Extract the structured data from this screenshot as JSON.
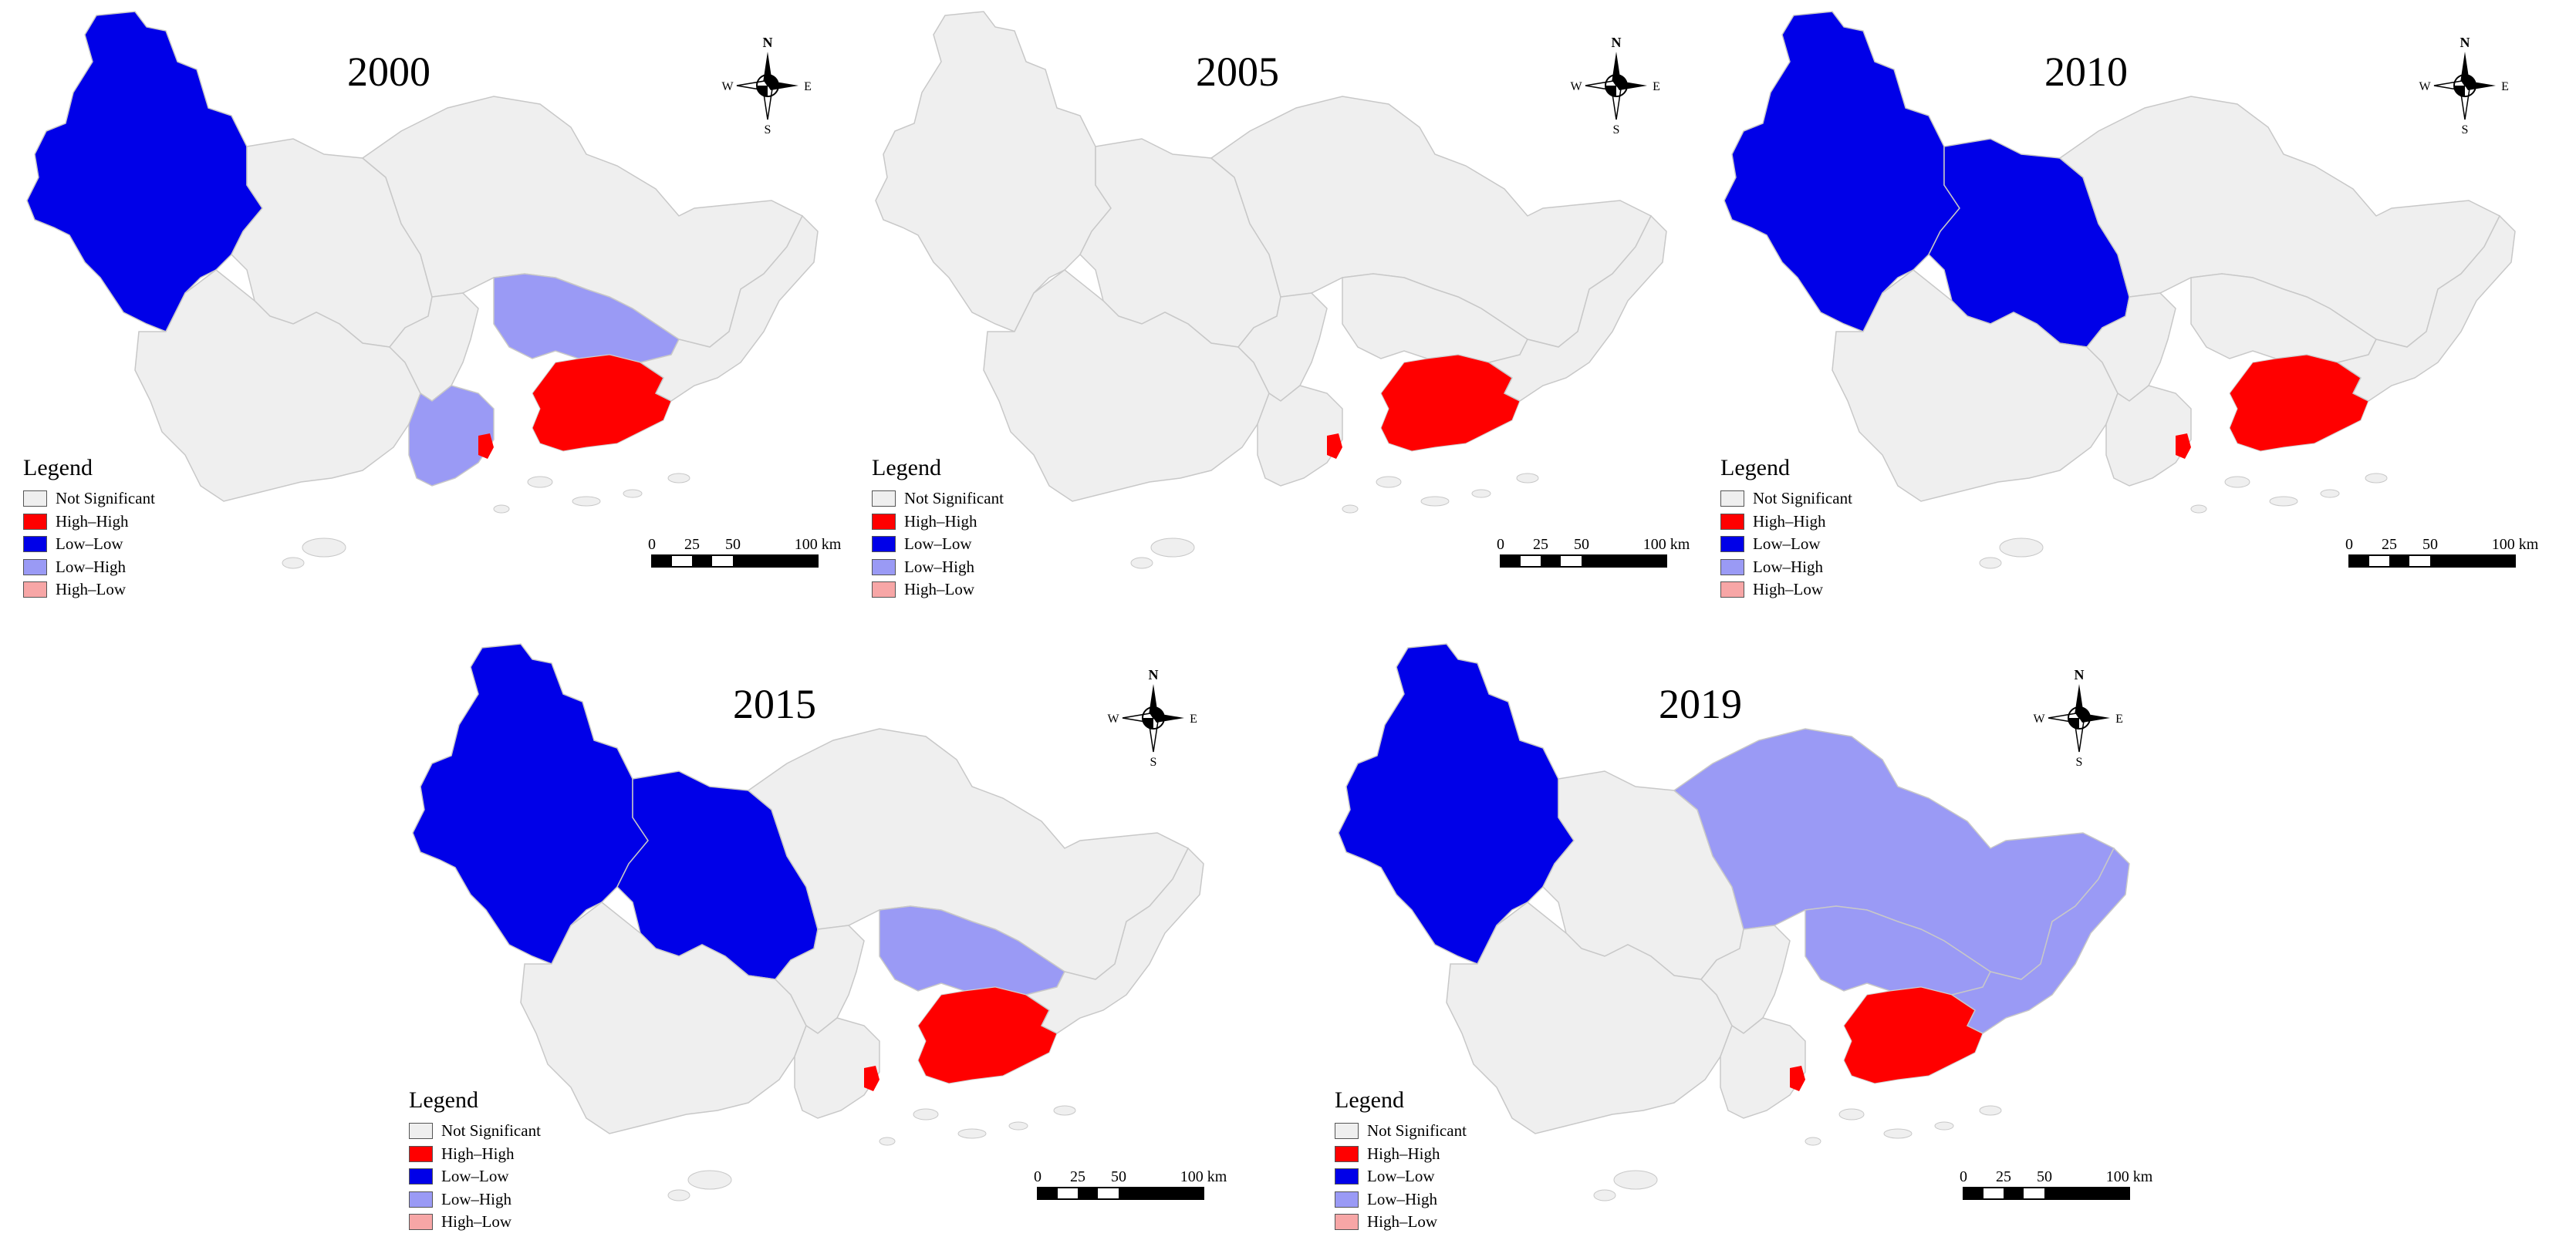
{
  "colors": {
    "not_significant": "#efefef",
    "high_high": "#ff0000",
    "low_low": "#0000e8",
    "low_high": "#9a9af5",
    "high_low": "#f7a6a6"
  },
  "legend": {
    "title": "Legend",
    "items": [
      {
        "label": "Not Significant",
        "color": "#efefef"
      },
      {
        "label": "High–High",
        "color": "#ff0000"
      },
      {
        "label": "Low–Low",
        "color": "#0000e8"
      },
      {
        "label": "Low–High",
        "color": "#9a9af5"
      },
      {
        "label": "High–Low",
        "color": "#f7a6a6"
      }
    ]
  },
  "compass": {
    "north": "N",
    "south": "S",
    "east": "E",
    "west": "W"
  },
  "scale": {
    "ticks": [
      "0",
      "25",
      "50",
      "100 km"
    ]
  },
  "panels": [
    {
      "year": "2000",
      "west": "low_low",
      "center": "not_significant",
      "center_north": "not_significant",
      "south": "high_high",
      "bay_ring": "low_high",
      "southwest": "low_high",
      "red_west_tip": true
    },
    {
      "year": "2005",
      "west": "not_significant",
      "center": "not_significant",
      "center_north": "not_significant",
      "south": "high_high",
      "bay_ring": "not_significant",
      "southwest": "not_significant",
      "red_west_tip": true
    },
    {
      "year": "2010",
      "west": "low_low",
      "center": "low_low",
      "center_north": "not_significant",
      "south": "high_high",
      "bay_ring": "not_significant",
      "southwest": "not_significant",
      "red_west_tip": true
    },
    {
      "year": "2015",
      "west": "low_low",
      "center": "low_low",
      "center_north": "not_significant",
      "south": "high_high",
      "bay_ring": "low_high",
      "southwest": "not_significant",
      "red_west_tip": true
    },
    {
      "year": "2019",
      "west": "low_low",
      "center": "not_significant",
      "center_north": "low_high",
      "south": "high_high",
      "bay_ring": "low_high",
      "southwest": "not_significant",
      "red_west_tip": true
    }
  ]
}
